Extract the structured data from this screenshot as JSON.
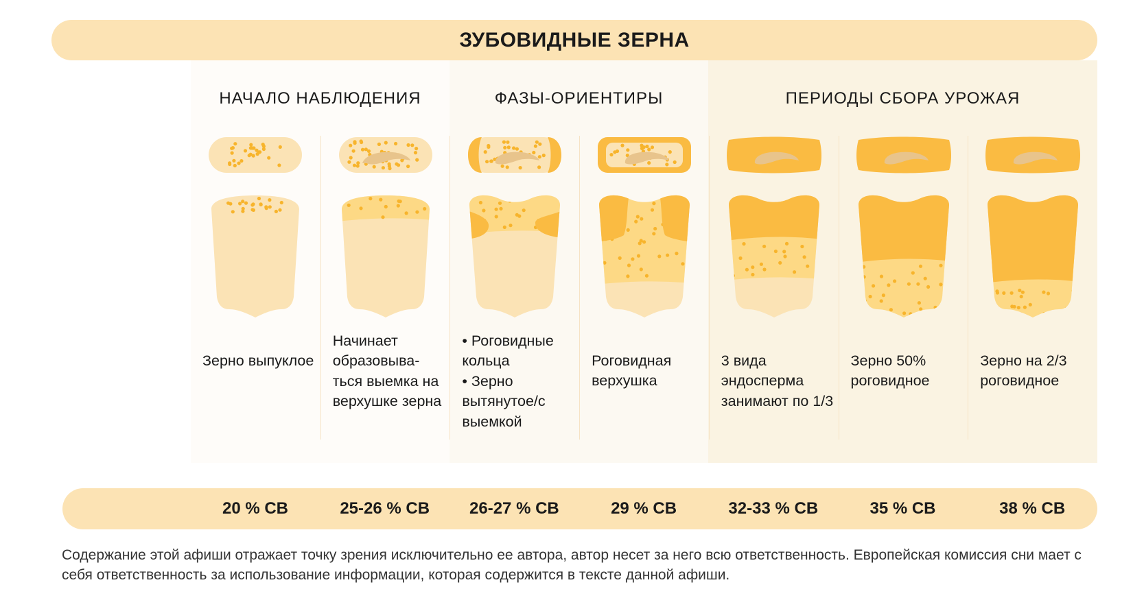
{
  "title": "ЗУБОВИДНЫЕ ЗЕРНА",
  "sections": [
    {
      "label": "НАЧАЛО НАБЛЮДЕНИЯ"
    },
    {
      "label": "ФАЗЫ-ОРИЕНТИРЫ"
    },
    {
      "label": "ПЕРИОДЫ СБОРА УРОЖАЯ"
    }
  ],
  "stages": [
    {
      "description": "Зерно выпуклое",
      "moisture": "20 % СВ"
    },
    {
      "description": "Начинает образовыва-ться выемка на верхушке зерна",
      "moisture": "25-26 % СВ"
    },
    {
      "description": "• Роговидные кольца\n• Зерно вытянутое/с выемкой",
      "moisture": "26-27 % СВ"
    },
    {
      "description": "Роговидная верхушка",
      "moisture": "29 % СВ"
    },
    {
      "description": "3 вида эндосперма занимают по 1/3",
      "moisture": "32-33 % СВ"
    },
    {
      "description": "Зерно 50% роговидное",
      "moisture": "35 % СВ"
    },
    {
      "description": "Зерно на 2/3 роговидное",
      "moisture": "38 % СВ"
    }
  ],
  "footer": "Содержание этой афиши отражает точку зрения исключительно ее автора, автор несет за него всю ответственность. Европейская комиссия сни мает с себя ответственность  за использование информации, которая содержится в тексте данной афиши.",
  "colors": {
    "band": "#fce3b4",
    "light": "#fbe3b5",
    "floury": "#fdd985",
    "horny": "#fabb42",
    "dot": "#f7b42c",
    "germ": "#e8c48c"
  }
}
